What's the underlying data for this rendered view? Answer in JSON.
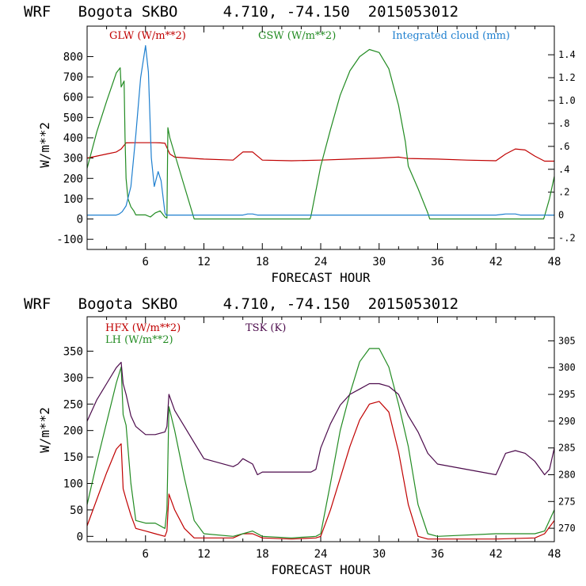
{
  "chart_data": [
    {
      "type": "line",
      "title": "WRF   Bogota SKBO     4.710, -74.150  2015053012",
      "xlabel": "FORECAST HOUR",
      "ylabel": "W/m**2",
      "xlim": [
        0,
        48
      ],
      "ylim": [
        -150,
        950
      ],
      "y2lim": [
        -0.3,
        1.65
      ],
      "xticks": [
        6,
        12,
        18,
        24,
        30,
        36,
        42,
        48
      ],
      "xtick_labels": [
        "6",
        "12",
        "18",
        "24",
        "30",
        "36",
        "42",
        "48"
      ],
      "yticks": [
        -100,
        0,
        100,
        200,
        300,
        400,
        500,
        600,
        700,
        800
      ],
      "ytick_labels": [
        "-100",
        "0",
        "100",
        "200",
        "300",
        "400",
        "500",
        "600",
        "700",
        "800"
      ],
      "y2ticks": [
        -0.2,
        0,
        0.2,
        0.4,
        0.6,
        0.8,
        1.0,
        1.2,
        1.4
      ],
      "y2tick_labels": [
        "-.2",
        "0",
        ".2",
        ".4",
        ".6",
        ".8",
        "1.0",
        "1.2",
        "1.4"
      ],
      "series": [
        {
          "name": "GLW (W/m**2)",
          "color": "#c00000",
          "axis": "left",
          "x": [
            0,
            1,
            2,
            3,
            3.5,
            4,
            5,
            6,
            7,
            7.5,
            8,
            8.5,
            9,
            12,
            15,
            15.5,
            16,
            17,
            17.5,
            18,
            21,
            24,
            27,
            30,
            32,
            33,
            36,
            39,
            42,
            43,
            44,
            45,
            46,
            47,
            48
          ],
          "y": [
            300,
            310,
            320,
            330,
            345,
            375,
            376,
            376,
            376,
            375,
            373,
            320,
            305,
            295,
            290,
            310,
            330,
            330,
            310,
            290,
            287,
            290,
            295,
            300,
            305,
            298,
            295,
            290,
            287,
            320,
            345,
            340,
            310,
            285,
            285
          ]
        },
        {
          "name": "GSW (W/m**2)",
          "color": "#228b22",
          "axis": "left",
          "x": [
            0,
            1,
            2,
            3,
            3.4,
            3.5,
            3.8,
            3.9,
            4.0,
            4.2,
            4.5,
            4.8,
            5,
            6,
            6.5,
            7,
            7.5,
            8,
            8.2,
            8.3,
            8.5,
            9,
            10,
            11,
            12,
            22.9,
            23,
            24,
            25,
            26,
            27,
            28,
            29,
            30,
            31,
            32,
            32.7,
            33,
            34,
            35,
            35.2,
            36,
            46.9,
            47,
            47.5,
            48
          ],
          "y": [
            250,
            430,
            580,
            720,
            745,
            650,
            680,
            400,
            200,
            100,
            60,
            40,
            20,
            20,
            10,
            30,
            40,
            10,
            5,
            450,
            400,
            320,
            160,
            0,
            0,
            0,
            15,
            260,
            440,
            610,
            730,
            800,
            835,
            820,
            740,
            560,
            380,
            260,
            150,
            30,
            0,
            0,
            0,
            15,
            100,
            210
          ]
        },
        {
          "name": "Integrated cloud (mm)",
          "color": "#1e7fcf",
          "axis": "right",
          "x": [
            0,
            3,
            3.3,
            3.6,
            4,
            4.5,
            5,
            5.5,
            6,
            6.3,
            6.6,
            6.9,
            7.3,
            7.6,
            8,
            8.1,
            8.3,
            8.6,
            16,
            16.5,
            17,
            17.5,
            42,
            43,
            44,
            44.5,
            48
          ],
          "y": [
            0,
            0,
            0.01,
            0.03,
            0.08,
            0.25,
            0.7,
            1.2,
            1.48,
            1.25,
            0.5,
            0.25,
            0.38,
            0.3,
            0.02,
            0,
            0,
            0,
            0,
            0.01,
            0.01,
            0,
            0,
            0.01,
            0.01,
            0,
            0
          ]
        }
      ]
    },
    {
      "type": "line",
      "title": "WRF   Bogota SKBO     4.710, -74.150  2015053012",
      "xlabel": "FORECAST HOUR",
      "ylabel": "W/m**2",
      "xlim": [
        0,
        48
      ],
      "ylim": [
        -10,
        415
      ],
      "y2lim": [
        267.5,
        309.5
      ],
      "xticks": [
        6,
        12,
        18,
        24,
        30,
        36,
        42,
        48
      ],
      "xtick_labels": [
        "6",
        "12",
        "18",
        "24",
        "30",
        "36",
        "42",
        "48"
      ],
      "yticks": [
        0,
        50,
        100,
        150,
        200,
        250,
        300,
        350
      ],
      "ytick_labels": [
        "0",
        "50",
        "100",
        "150",
        "200",
        "250",
        "300",
        "350"
      ],
      "y2ticks": [
        270,
        275,
        280,
        285,
        290,
        295,
        300,
        305
      ],
      "y2tick_labels": [
        "270",
        "275",
        "280",
        "285",
        "290",
        "295",
        "300",
        "305"
      ],
      "series": [
        {
          "name": "HFX (W/m**2)",
          "color": "#c00000",
          "axis": "left",
          "x": [
            0,
            1,
            2,
            3,
            3.5,
            3.7,
            4,
            4.5,
            5,
            6,
            7,
            8,
            8.2,
            8.4,
            9,
            10,
            11,
            12,
            15,
            16,
            17,
            18,
            21,
            23.5,
            24,
            25,
            26,
            27,
            28,
            29,
            30,
            31,
            32,
            33,
            34,
            35,
            36,
            42,
            46,
            47,
            48
          ],
          "y": [
            20,
            70,
            120,
            165,
            175,
            90,
            70,
            40,
            15,
            10,
            5,
            0,
            10,
            80,
            50,
            15,
            -3,
            -3,
            -3,
            5,
            5,
            -3,
            -5,
            -3,
            0,
            50,
            110,
            170,
            220,
            250,
            255,
            235,
            160,
            60,
            0,
            -5,
            -5,
            -5,
            -3,
            5,
            30
          ]
        },
        {
          "name": "LH (W/m**2)",
          "color": "#228b22",
          "axis": "left",
          "x": [
            0,
            1,
            2,
            3,
            3.5,
            3.7,
            4,
            4.5,
            5,
            6,
            7,
            8,
            8.2,
            8.4,
            9,
            10,
            11,
            12,
            15,
            16,
            17,
            18,
            21,
            23.5,
            24,
            25,
            26,
            27,
            28,
            29,
            30,
            31,
            32,
            33,
            34,
            35,
            36,
            42,
            46,
            47,
            48
          ],
          "y": [
            60,
            140,
            215,
            290,
            320,
            230,
            210,
            100,
            30,
            25,
            25,
            15,
            50,
            245,
            200,
            110,
            30,
            5,
            0,
            5,
            10,
            0,
            -3,
            0,
            5,
            100,
            200,
            270,
            330,
            355,
            355,
            320,
            250,
            170,
            60,
            5,
            0,
            5,
            5,
            10,
            50
          ]
        },
        {
          "name": "TSK (K)",
          "color": "#4b0a4b",
          "axis": "right",
          "x": [
            0,
            1,
            2,
            3,
            3.5,
            3.7,
            4,
            4.5,
            5,
            6,
            7,
            8,
            8.2,
            8.4,
            9,
            10,
            11,
            12,
            15,
            15.5,
            16,
            17,
            17.5,
            18,
            21,
            23,
            23.5,
            24,
            25,
            26,
            27,
            28,
            29,
            30,
            31,
            32,
            33,
            34,
            35,
            36,
            42,
            42.5,
            43,
            44,
            45,
            46,
            47,
            47.5,
            48
          ],
          "y": [
            290,
            294,
            297,
            300,
            301,
            297,
            295,
            291,
            289,
            287.5,
            287.5,
            288,
            289,
            295,
            292,
            289,
            286,
            283,
            281.5,
            282,
            283,
            282,
            280,
            280.5,
            280.5,
            280.5,
            281,
            285,
            289.5,
            293,
            295,
            296,
            297,
            297,
            296.5,
            295,
            291,
            288,
            284,
            282,
            280,
            282,
            284,
            284.5,
            284,
            282.5,
            280,
            281,
            285
          ]
        }
      ]
    }
  ]
}
